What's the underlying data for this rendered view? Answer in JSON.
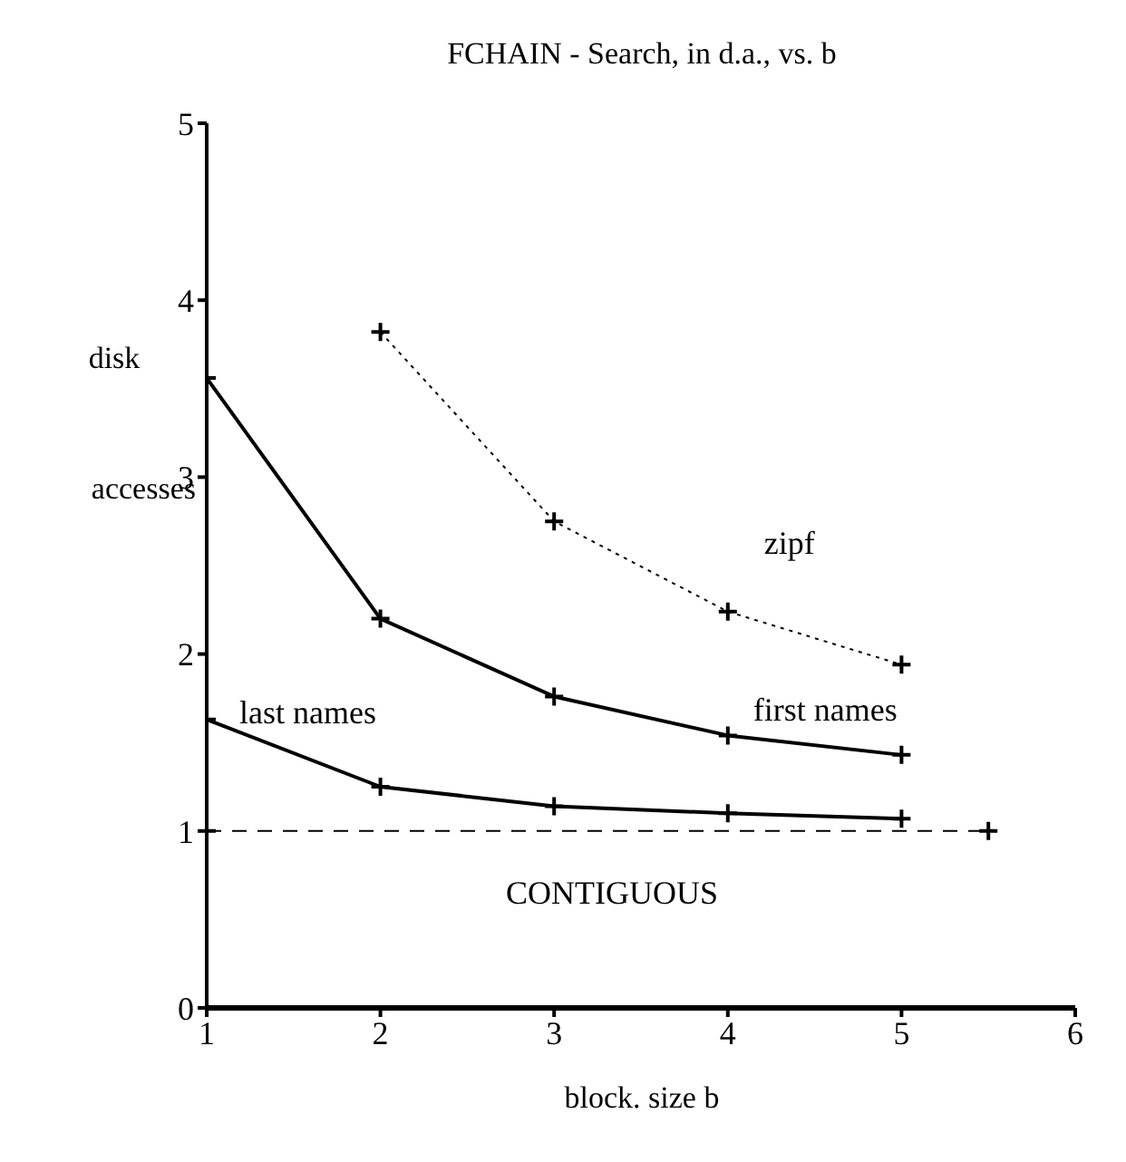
{
  "chart_data": {
    "type": "line",
    "title": "FCHAIN - Search, in d.a., vs. b",
    "xlabel": "block. size b",
    "ylabel": "disk accesses",
    "xlim": [
      1,
      6
    ],
    "xticks": [
      1,
      2,
      3,
      4,
      5,
      6
    ],
    "ylim": [
      0,
      5
    ],
    "yticks": [
      0,
      1,
      2,
      3,
      4,
      5
    ],
    "marker": "cross",
    "series": [
      {
        "name": "zipf",
        "color": "#000000",
        "line_style": "dotted",
        "x": [
          2,
          3,
          4,
          5
        ],
        "values": [
          3.82,
          2.75,
          2.24,
          1.94
        ]
      },
      {
        "name": "first names",
        "color": "#000000",
        "line_style": "solid",
        "x": [
          1,
          2,
          3,
          4,
          5
        ],
        "values": [
          3.56,
          2.2,
          1.76,
          1.54,
          1.43
        ]
      },
      {
        "name": "last names",
        "color": "#000000",
        "line_style": "solid",
        "x": [
          1,
          2,
          3,
          4,
          5
        ],
        "values": [
          1.63,
          1.25,
          1.14,
          1.1,
          1.07
        ]
      },
      {
        "name": "CONTIGUOUS",
        "color": "#000000",
        "line_style": "dashed",
        "x": [
          1,
          5.5
        ],
        "values": [
          1,
          1
        ]
      }
    ]
  }
}
